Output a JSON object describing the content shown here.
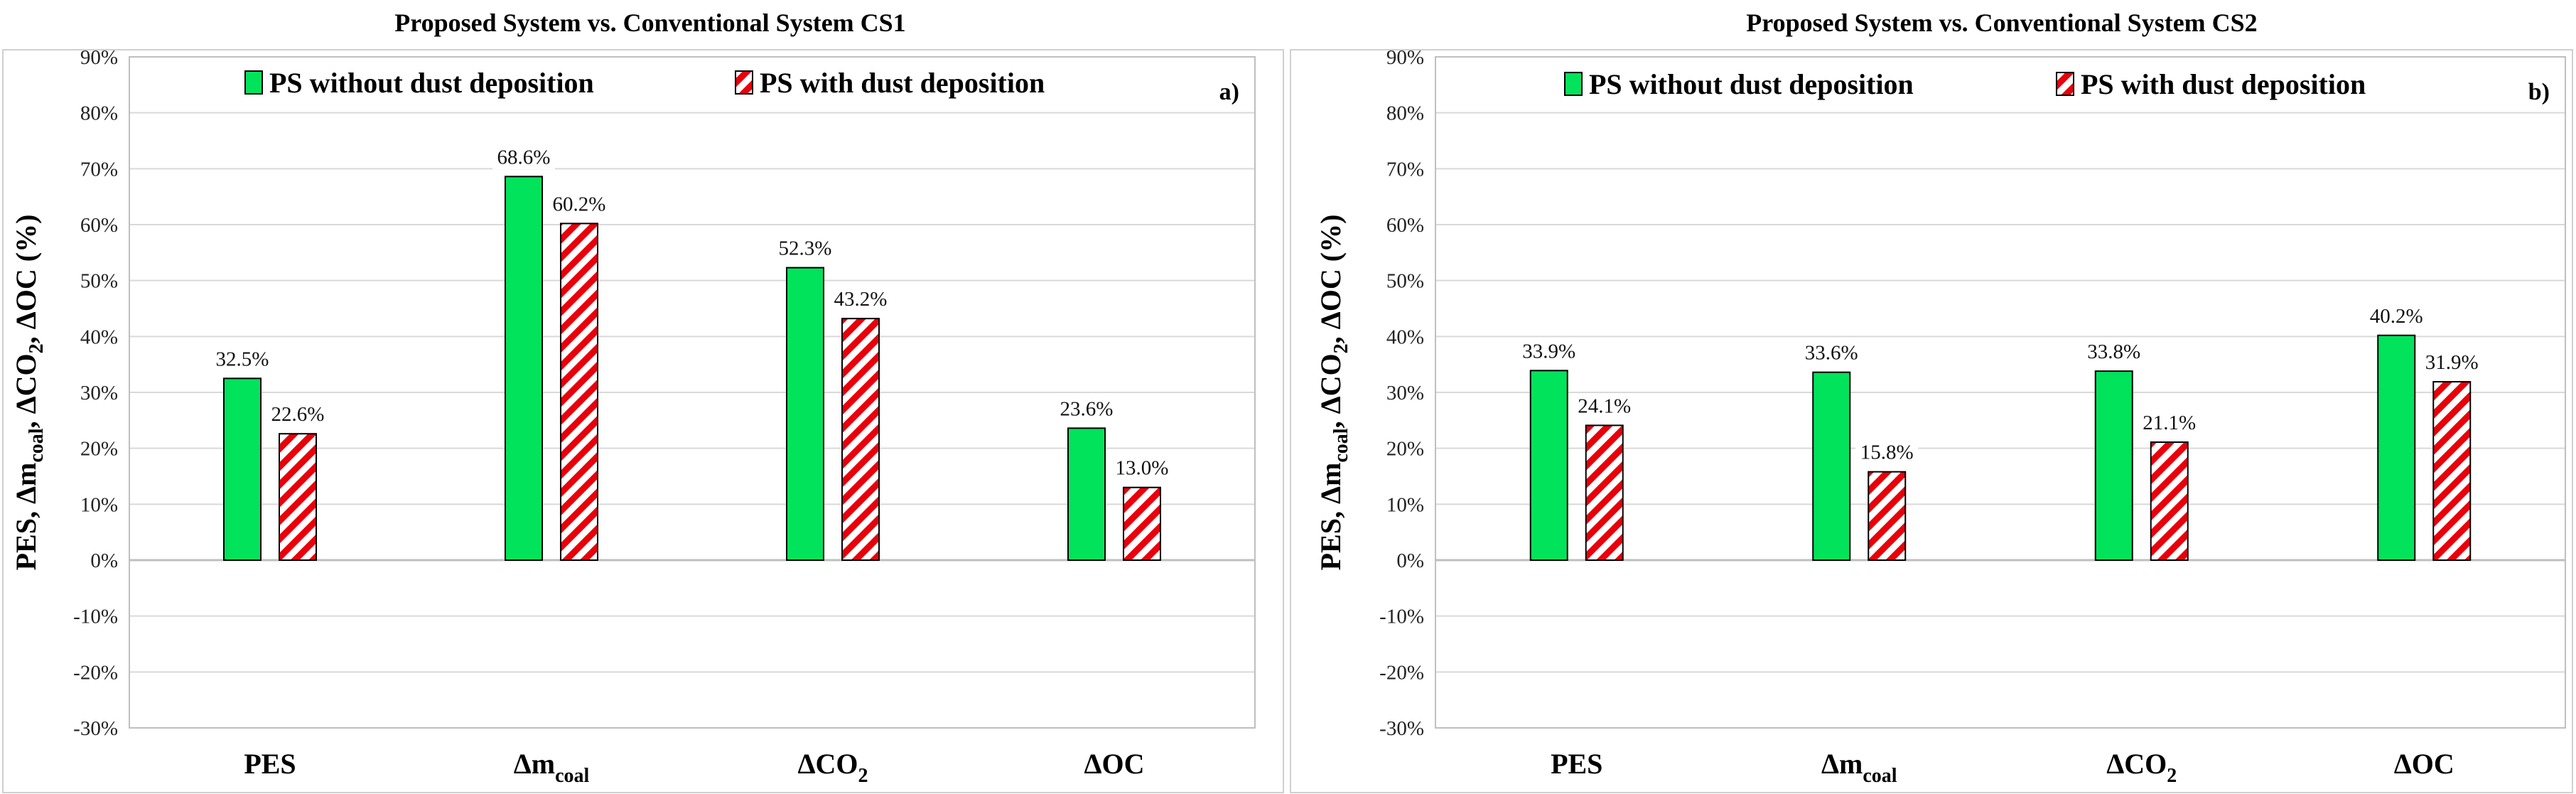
{
  "colors": {
    "green": "#00e35a",
    "hatch_red": "#e8000b",
    "grid": "#d9d9d9",
    "axis": "#bfbfbf"
  },
  "chart_data": [
    {
      "type": "bar",
      "panel_label": "a)",
      "title": "Proposed System vs. Conventional System CS1",
      "ylabel": "PES, Δm_coal, ΔCO2, ΔOC (%)",
      "ylim": [
        -30,
        90
      ],
      "yticks": [
        90,
        80,
        70,
        60,
        50,
        40,
        30,
        20,
        10,
        0,
        -10,
        -20,
        -30
      ],
      "ytick_labels": [
        "90%",
        "80%",
        "70%",
        "60%",
        "50%",
        "40%",
        "30%",
        "20%",
        "10%",
        "0%",
        "-10%",
        "-20%",
        "-30%"
      ],
      "categories": [
        "PES",
        "Δm_coal",
        "ΔCO2",
        "ΔOC"
      ],
      "series": [
        {
          "name": "PS without dust deposition",
          "fill": "solid-green",
          "values": [
            32.5,
            68.6,
            52.3,
            23.6
          ],
          "labels": [
            "32.5%",
            "68.6%",
            "52.3%",
            "23.6%"
          ]
        },
        {
          "name": "PS with dust deposition",
          "fill": "hatched-red",
          "values": [
            22.6,
            60.2,
            43.2,
            13.0
          ],
          "labels": [
            "22.6%",
            "60.2%",
            "43.2%",
            "13.0%"
          ]
        }
      ],
      "legend": "top"
    },
    {
      "type": "bar",
      "panel_label": "b)",
      "title": "Proposed System vs. Conventional System CS2",
      "ylabel": "PES, Δm_coal, ΔCO2, ΔOC (%)",
      "ylim": [
        -30,
        90
      ],
      "yticks": [
        90,
        80,
        70,
        60,
        50,
        40,
        30,
        20,
        10,
        0,
        -10,
        -20,
        -30
      ],
      "ytick_labels": [
        "90%",
        "80%",
        "70%",
        "60%",
        "50%",
        "40%",
        "30%",
        "20%",
        "10%",
        "0%",
        "-10%",
        "-20%",
        "-30%"
      ],
      "categories": [
        "PES",
        "Δm_coal",
        "ΔCO2",
        "ΔOC"
      ],
      "series": [
        {
          "name": "PS without dust deposition",
          "fill": "solid-green",
          "values": [
            33.9,
            33.6,
            33.8,
            40.2
          ],
          "labels": [
            "33.9%",
            "33.6%",
            "33.8%",
            "40.2%"
          ]
        },
        {
          "name": "PS with dust deposition",
          "fill": "hatched-red",
          "values": [
            24.1,
            15.8,
            21.1,
            31.9
          ],
          "labels": [
            "24.1%",
            "15.8%",
            "21.1%",
            "31.9%"
          ]
        }
      ],
      "legend": "top"
    }
  ]
}
